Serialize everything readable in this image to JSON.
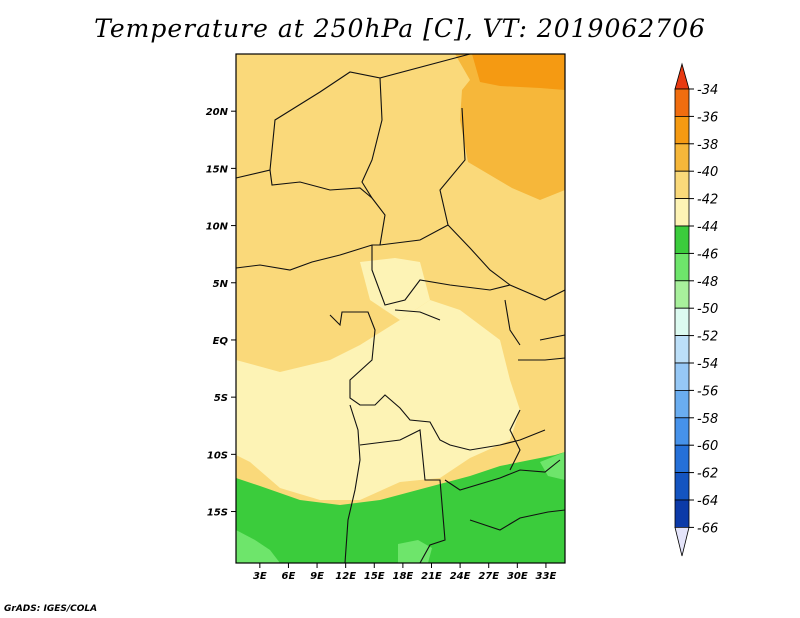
{
  "title": "Temperature at 250hPa [C], VT: 2019062706",
  "credit": "GrADS: IGES/COLA",
  "chart_data": {
    "type": "heatmap",
    "title": "Temperature at 250hPa [C], VT: 2019062706",
    "field": "Temperature at 250hPa",
    "units": "C",
    "valid_time": "2019062706",
    "x_ticks": [
      "3E",
      "6E",
      "9E",
      "12E",
      "15E",
      "18E",
      "21E",
      "24E",
      "27E",
      "30E",
      "33E"
    ],
    "y_ticks": [
      "20N",
      "15N",
      "10N",
      "5N",
      "EQ",
      "5S",
      "10S",
      "15S"
    ],
    "x_tick_values": [
      3,
      6,
      9,
      12,
      15,
      18,
      21,
      24,
      27,
      30,
      33
    ],
    "y_tick_values": [
      20,
      15,
      10,
      5,
      0,
      -5,
      -10,
      -15
    ],
    "xlim": [
      0.5,
      35
    ],
    "ylim": [
      -19.5,
      25
    ],
    "colorbar": {
      "levels": [
        "-34",
        "-36",
        "-38",
        "-40",
        "-42",
        "-44",
        "-46",
        "-48",
        "-50",
        "-52",
        "-54",
        "-56",
        "-58",
        "-60",
        "-62",
        "-64",
        "-66"
      ],
      "colors": [
        "#e83a12",
        "#f06d0f",
        "#f59a12",
        "#f6b73a",
        "#fad97a",
        "#fdf3b5",
        "#3bcc3c",
        "#6ee56b",
        "#a8f09c",
        "#dcfaf0",
        "#bcdff8",
        "#96c8f6",
        "#6aadf0",
        "#4692ea",
        "#2570d8",
        "#1454c0",
        "#0c3aa8",
        "#0c1a6e",
        "#e4e4fa"
      ]
    },
    "regions": [
      {
        "name": "north-band",
        "value_range": "-40 to -42",
        "color": "#fad97a"
      },
      {
        "name": "northeast-corner",
        "value_range": "-38 to -40",
        "color": "#f6b73a"
      },
      {
        "name": "central-basin",
        "value_range": "-42 to -44",
        "color": "#fdf3b5"
      },
      {
        "name": "southern-band",
        "value_range": "-44 to -46",
        "color": "#3bcc3c"
      },
      {
        "name": "far-south",
        "value_range": "-46 to -48",
        "color": "#6ee56b"
      }
    ],
    "grid": false,
    "legend": "right"
  }
}
